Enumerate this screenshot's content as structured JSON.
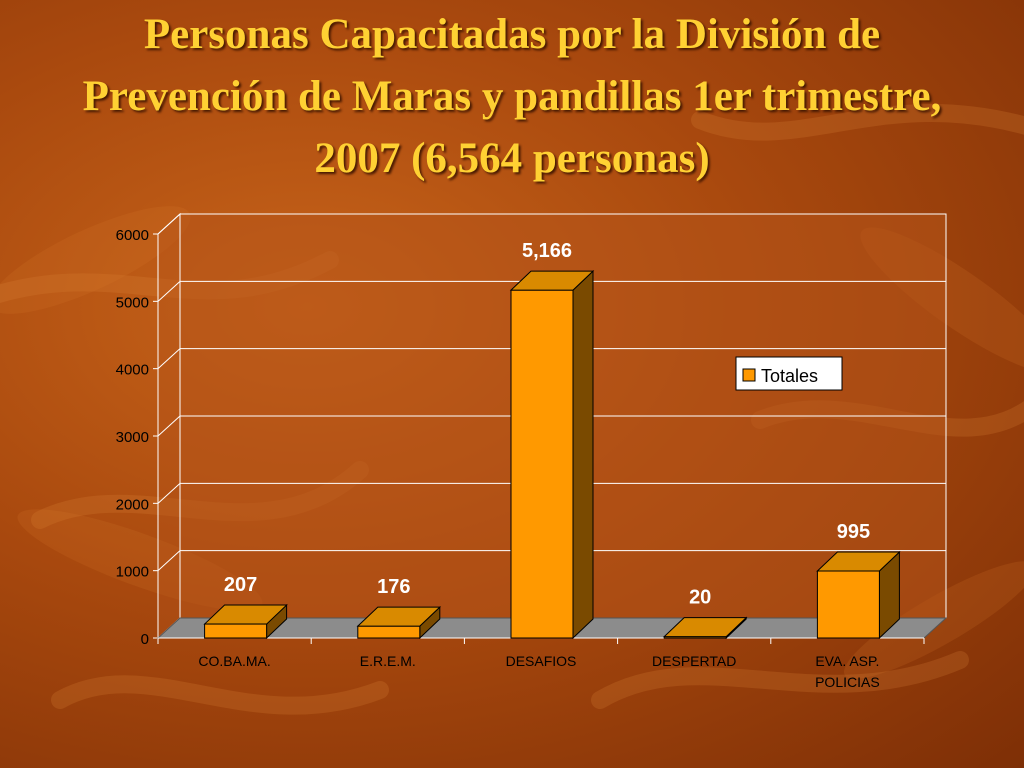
{
  "slide": {
    "title": "Personas Capacitadas por la División de Prevención de Maras y pandillas 1er trimestre, 2007 (6,564 personas)"
  },
  "chart_data": {
    "type": "bar",
    "title": "",
    "xlabel": "",
    "ylabel": "",
    "categories": [
      "CO.BA.MA.",
      "E.R.E.M.",
      "DESAFIOS",
      "DESPERTAD",
      "EVA. ASP. POLICIAS"
    ],
    "series": [
      {
        "name": "Totales",
        "values": [
          207,
          176,
          5166,
          20,
          995
        ]
      }
    ],
    "data_labels": [
      "207",
      "176",
      "5,166",
      "20",
      "995"
    ],
    "y_ticks": [
      0,
      1000,
      2000,
      3000,
      4000,
      5000,
      6000
    ],
    "ylim": [
      0,
      6000
    ],
    "grid": true,
    "legend": "right",
    "colors": {
      "bar_front": "#ff9900",
      "bar_top": "#d98a00",
      "bar_side": "#7a4a00",
      "floor": "#8c8c8c",
      "plot_background": "#b5541a",
      "text": "#000000",
      "data_label": "#ffffff"
    }
  }
}
